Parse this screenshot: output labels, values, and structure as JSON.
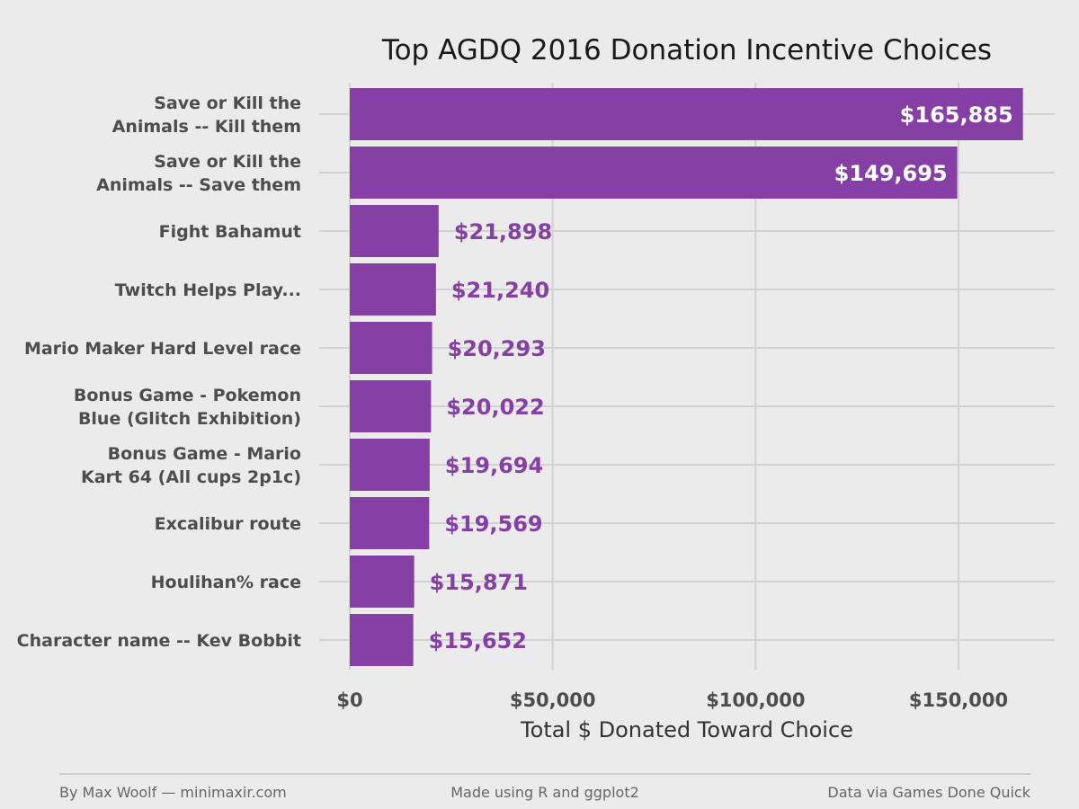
{
  "chart_data": {
    "type": "bar",
    "orientation": "horizontal",
    "title": "Top AGDQ 2016 Donation Incentive Choices",
    "xlabel": "Total $ Donated Toward Choice",
    "ylabel": "",
    "xlim": [
      0,
      172000
    ],
    "x_ticks": [
      0,
      50000,
      100000,
      150000
    ],
    "x_tick_labels": [
      "$0",
      "$50,000",
      "$100,000",
      "$150,000"
    ],
    "grid": true,
    "bar_color": "#8640a5",
    "inside_label_color": "#ffffff",
    "categories": [
      [
        "Save or Kill the",
        "Animals -- Kill them"
      ],
      [
        "Save or Kill the",
        "Animals -- Save them"
      ],
      [
        "Fight Bahamut"
      ],
      [
        "Twitch Helps Play..."
      ],
      [
        "Mario Maker Hard Level race"
      ],
      [
        "Bonus Game - Pokemon",
        "Blue (Glitch Exhibition)"
      ],
      [
        "Bonus Game - Mario",
        "Kart 64 (All cups 2p1c)"
      ],
      [
        "Excalibur route"
      ],
      [
        "Houlihan% race"
      ],
      [
        "Character name -- Kev Bobbit"
      ]
    ],
    "values": [
      165885,
      149695,
      21898,
      21240,
      20293,
      20022,
      19694,
      19569,
      15871,
      15652
    ],
    "value_labels": [
      "$165,885",
      "$149,695",
      "$21,898",
      "$21,240",
      "$20,293",
      "$20,022",
      "$19,694",
      "$19,569",
      "$15,871",
      "$15,652"
    ]
  },
  "footer": {
    "left": "By Max Woolf — minimaxir.com",
    "center": "Made using R and ggplot2",
    "right": "Data via Games Done Quick"
  }
}
